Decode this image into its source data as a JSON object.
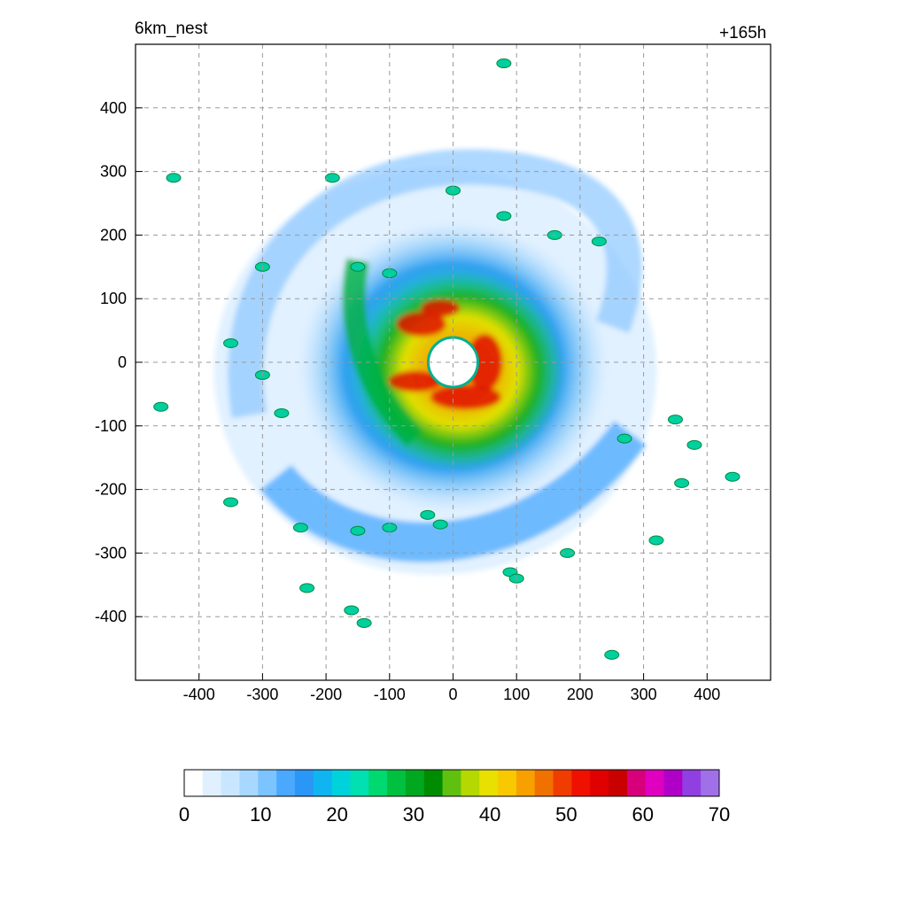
{
  "header": {
    "left_title": "6km_nest",
    "right_title": "+165h"
  },
  "chart_data": {
    "type": "heatmap",
    "title": "",
    "xlabel": "",
    "ylabel": "",
    "xlim": [
      -500,
      500
    ],
    "ylim": [
      -500,
      500
    ],
    "x_ticks": [
      -400,
      -300,
      -200,
      -100,
      0,
      100,
      200,
      300,
      400
    ],
    "y_ticks": [
      400,
      300,
      200,
      100,
      0,
      -100,
      -200,
      -300,
      -400
    ],
    "grid": true,
    "colorbar": {
      "min": 0,
      "max": 70,
      "ticks": [
        0,
        10,
        20,
        30,
        40,
        50,
        60,
        70
      ],
      "colors": [
        "#ffffff",
        "#e0f0ff",
        "#c8e6ff",
        "#a8d8ff",
        "#7cc4ff",
        "#4aa8ff",
        "#2a96f6",
        "#0fb4f0",
        "#00d2dc",
        "#00e0b0",
        "#00d870",
        "#00c040",
        "#00a820",
        "#008c00",
        "#60c010",
        "#b4d800",
        "#e8e000",
        "#f8c800",
        "#f8a000",
        "#f07000",
        "#f03c00",
        "#f01000",
        "#e00000",
        "#c80000",
        "#d8007a",
        "#e000c0",
        "#b000c8",
        "#9040e0",
        "#a070e8"
      ]
    },
    "storm_center": [
      0,
      0
    ],
    "eye_radius_km": 30,
    "annotation": "simulated radar reflectivity field of a tropical cyclone, eye near (0,0)"
  }
}
